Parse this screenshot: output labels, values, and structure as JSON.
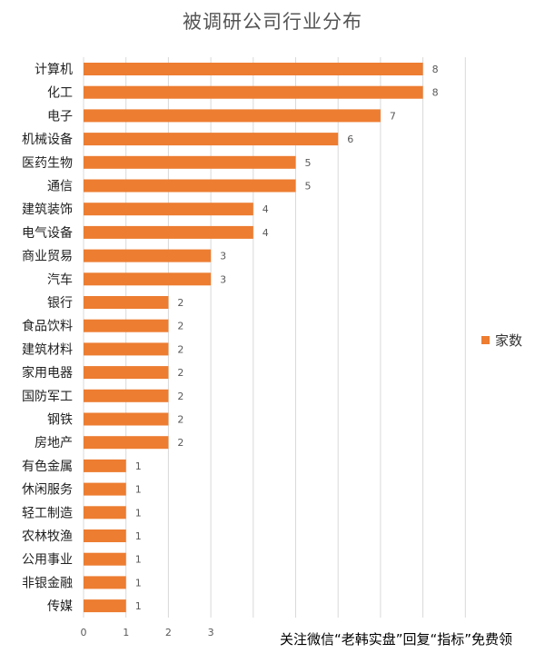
{
  "chart_data": {
    "type": "bar",
    "orientation": "horizontal",
    "title": "被调研公司行业分布",
    "categories": [
      "计算机",
      "化工",
      "电子",
      "机械设备",
      "医药生物",
      "通信",
      "建筑装饰",
      "电气设备",
      "商业贸易",
      "汽车",
      "银行",
      "食品饮料",
      "建筑材料",
      "家用电器",
      "国防军工",
      "钢铁",
      "房地产",
      "有色金属",
      "休闲服务",
      "轻工制造",
      "农林牧渔",
      "公用事业",
      "非银金融",
      "传媒"
    ],
    "series": [
      {
        "name": "家数",
        "values": [
          8,
          8,
          7,
          6,
          5,
          5,
          4,
          4,
          3,
          3,
          2,
          2,
          2,
          2,
          2,
          2,
          2,
          1,
          1,
          1,
          1,
          1,
          1,
          1
        ]
      }
    ],
    "x_ticks": [
      "0",
      "1",
      "2",
      "3"
    ],
    "xlim": [
      0,
      9
    ],
    "grid": true,
    "legend_position": "right",
    "colors": {
      "bar": "#ED7D31",
      "grid": "#D9D9D9",
      "axis_text": "#595959",
      "category_text": "#222222"
    }
  },
  "watermark": "关注微信“老韩实盘”回复“指标”免费领"
}
